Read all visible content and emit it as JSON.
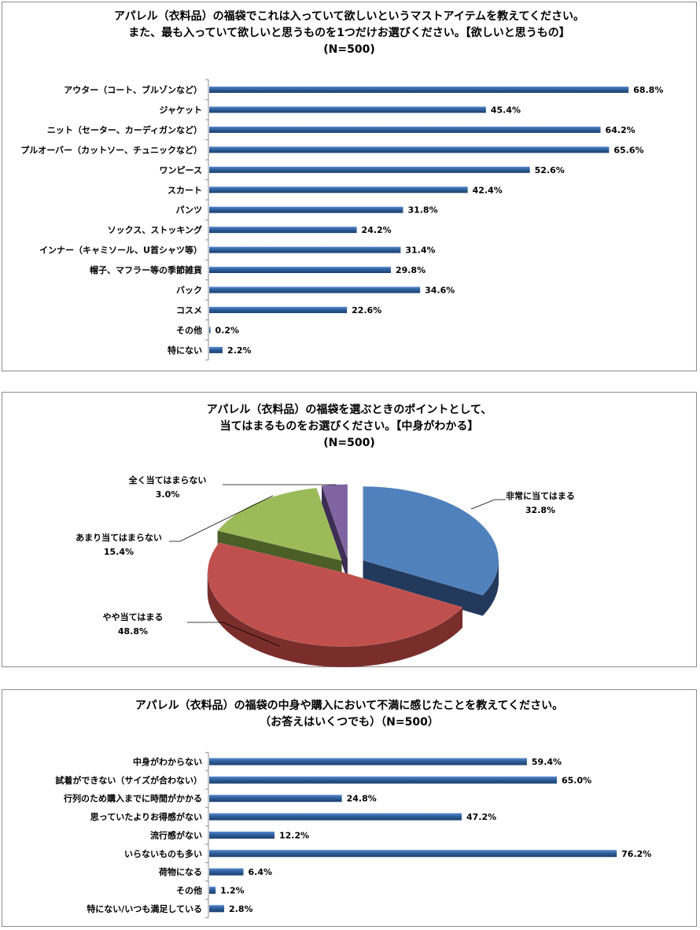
{
  "chart_data": [
    {
      "type": "bar",
      "title": [
        "アパレル（衣料品）の福袋でこれは入っていて欲しいというマストアイテムを教えてください。",
        "また、最も入っていて欲しいと思うものを1つだけお選びください。【欲しいと思うもの】",
        "(N=500)"
      ],
      "categories": [
        "アウター（コート、ブルゾンなど）",
        "ジャケット",
        "ニット（セーター、カーディガンなど）",
        "プルオーバー（カットソー、チュニックなど）",
        "ワンピース",
        "スカート",
        "パンツ",
        "ソックス、ストッキング",
        "インナー（キャミソール、U首シャツ等）",
        "帽子、マフラー等の季節雑貨",
        "バック",
        "コスメ",
        "その他",
        "特にない"
      ],
      "values": [
        68.8,
        45.4,
        64.2,
        65.6,
        52.6,
        42.4,
        31.8,
        24.2,
        31.4,
        29.8,
        34.6,
        22.6,
        0.2,
        2.2
      ],
      "labels": [
        "68.8%",
        "45.4%",
        "64.2%",
        "65.6%",
        "52.6%",
        "42.4%",
        "31.8%",
        "24.2%",
        "31.4%",
        "29.8%",
        "34.6%",
        "22.6%",
        "0.2%",
        "2.2%"
      ],
      "bar_color": "#2f5f9c",
      "orientation": "horizontal"
    },
    {
      "type": "pie",
      "title": [
        "アパレル（衣料品）の福袋を選ぶときのポイントとして、",
        "当てはまるものをお選びください。【中身がわかる】",
        "(N=500)"
      ],
      "slices": [
        {
          "name": "非常に当てはまる",
          "value": 32.8,
          "label": "32.8%",
          "color": "#4f81bd",
          "dark": "#23395c"
        },
        {
          "name": "やや当てはまる",
          "value": 48.8,
          "label": "48.8%",
          "color": "#c0504d",
          "dark": "#7a2e2c"
        },
        {
          "name": "あまり当てはまらない",
          "value": 15.4,
          "label": "15.4%",
          "color": "#9bbb59",
          "dark": "#4a5e26"
        },
        {
          "name": "全く当てはまらない",
          "value": 3.0,
          "label": "3.0%",
          "color": "#8064a2",
          "dark": "#3e2d55"
        }
      ],
      "style": "3d-exploded"
    },
    {
      "type": "bar",
      "title": [
        "アパレル（衣料品）の福袋の中身や購入において不満に感じたことを教えてください。",
        "（お答えはいくつでも）（N=500）"
      ],
      "categories": [
        "中身がわからない",
        "試着ができない（サイズが合わない）",
        "行列のため購入までに時間がかかる",
        "思っていたよりお得感がない",
        "流行感がない",
        "いらないものも多い",
        "荷物になる",
        "その他",
        "特にない/いつも満足している"
      ],
      "values": [
        59.4,
        65.0,
        24.8,
        47.2,
        12.2,
        76.2,
        6.4,
        1.2,
        2.8
      ],
      "labels": [
        "59.4%",
        "65.0%",
        "24.8%",
        "47.2%",
        "12.2%",
        "76.2%",
        "6.4%",
        "1.2%",
        "2.8%"
      ],
      "bar_color": "#2f5f9c",
      "orientation": "horizontal"
    }
  ]
}
